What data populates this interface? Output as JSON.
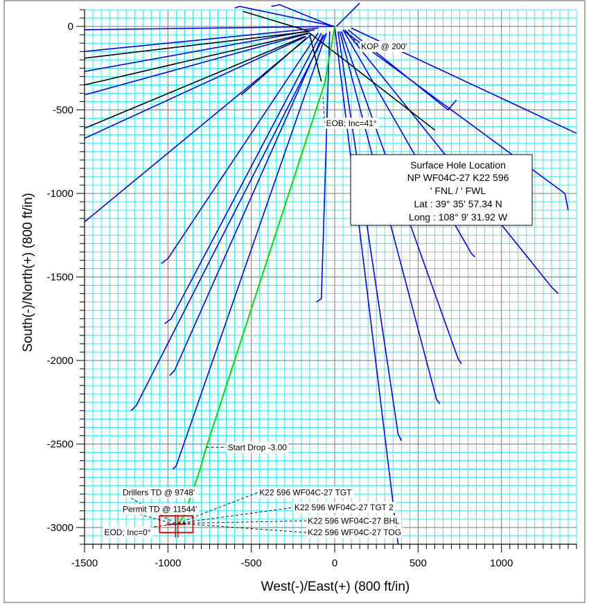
{
  "chart_data": {
    "type": "line",
    "title": "",
    "xlabel": "West(-)/East(+) (800 ft/in)",
    "ylabel": "South(-)/North(+) (800 ft/in)",
    "xlim": [
      -1500,
      1450
    ],
    "ylim": [
      -3100,
      100
    ],
    "x_ticks": [
      -1500,
      -1000,
      -500,
      0,
      500,
      1000
    ],
    "y_ticks": [
      0,
      -500,
      -1000,
      -1500,
      -2000,
      -2500,
      -3000
    ],
    "x_tick_labels": [
      "-1500",
      "-1000",
      "-500",
      "0",
      "500",
      "1000"
    ],
    "y_tick_labels": [
      "0",
      "-500",
      "-1000",
      "-1500",
      "-2000",
      "-2500",
      "-3000"
    ],
    "grid": true,
    "colors": {
      "grid_minor": "#00e5ee",
      "grid_major": "#777777",
      "offset_wells": "#0000ee",
      "offset_wells_black": "#000000",
      "plan": "#00dd00",
      "target": "#ee0000"
    },
    "plan_series": {
      "name": "",
      "x": [
        0,
        0,
        -60,
        -770,
        -810,
        -900,
        -935,
        -950
      ],
      "y": [
        0,
        0,
        -340,
        -2520,
        -2660,
        -2920,
        -2975,
        -2980
      ]
    },
    "offset_wells_blue": [
      {
        "x": [
          0,
          -1500
        ],
        "y": [
          0,
          -20
        ]
      },
      {
        "x": [
          -100,
          -1500
        ],
        "y": [
          -10,
          -150
        ]
      },
      {
        "x": [
          -120,
          -1500
        ],
        "y": [
          -20,
          -270
        ]
      },
      {
        "x": [
          -150,
          -1500
        ],
        "y": [
          -40,
          -410
        ]
      },
      {
        "x": [
          -170,
          -1500
        ],
        "y": [
          -60,
          -670
        ]
      },
      {
        "x": [
          -140,
          -1500
        ],
        "y": [
          -50,
          -1170
        ]
      },
      {
        "x": [
          -100,
          -1000,
          -1040
        ],
        "y": [
          -40,
          -1390,
          -1420
        ]
      },
      {
        "x": [
          -80,
          -980,
          -1020
        ],
        "y": [
          -40,
          -1750,
          -1780
        ]
      },
      {
        "x": [
          -70,
          -960,
          -990
        ],
        "y": [
          -50,
          -2060,
          -2090
        ]
      },
      {
        "x": [
          -60,
          -1190,
          -1220
        ],
        "y": [
          -50,
          -2270,
          -2300
        ]
      },
      {
        "x": [
          -50,
          -950,
          -970
        ],
        "y": [
          -40,
          -2630,
          -2650
        ]
      },
      {
        "x": [
          -30,
          -80,
          -110
        ],
        "y": [
          -30,
          -1630,
          -1650
        ]
      },
      {
        "x": [
          0,
          380
        ],
        "y": [
          0,
          -3100
        ]
      },
      {
        "x": [
          20,
          380,
          400
        ],
        "y": [
          -30,
          -2440,
          -2480
        ]
      },
      {
        "x": [
          30,
          610,
          630
        ],
        "y": [
          -30,
          -2230,
          -2260
        ]
      },
      {
        "x": [
          40,
          740,
          760
        ],
        "y": [
          -30,
          -1990,
          -2020
        ]
      },
      {
        "x": [
          50,
          820,
          840
        ],
        "y": [
          -20,
          -1360,
          -1380
        ]
      },
      {
        "x": [
          60,
          1300,
          1340
        ],
        "y": [
          -20,
          -1560,
          -1600
        ]
      },
      {
        "x": [
          80,
          680,
          730
        ],
        "y": [
          -20,
          -500,
          -440
        ]
      },
      {
        "x": [
          100,
          1450
        ],
        "y": [
          -10,
          -640
        ]
      },
      {
        "x": [
          60,
          1380,
          1400
        ],
        "y": [
          -30,
          -1000,
          -1100
        ]
      },
      {
        "x": [
          0,
          -570,
          -600
        ],
        "y": [
          0,
          120,
          110
        ]
      },
      {
        "x": [
          -10,
          -330,
          -380
        ],
        "y": [
          0,
          130,
          120
        ]
      },
      {
        "x": [
          10,
          130,
          150
        ],
        "y": [
          0,
          120,
          140
        ]
      }
    ],
    "offset_wells_black": [
      {
        "x": [
          -150,
          -1500
        ],
        "y": [
          -30,
          -190
        ]
      },
      {
        "x": [
          -160,
          -1500
        ],
        "y": [
          -40,
          -350
        ]
      },
      {
        "x": [
          -180,
          -1500
        ],
        "y": [
          -60,
          -610
        ]
      },
      {
        "x": [
          -170,
          -560
        ],
        "y": [
          -70,
          -410
        ]
      },
      {
        "x": [
          -150,
          -80
        ],
        "y": [
          -50,
          -330
        ]
      },
      {
        "x": [
          -150,
          600
        ],
        "y": [
          -40,
          -620
        ]
      },
      {
        "x": [
          -150,
          -550
        ],
        "y": [
          -30,
          90
        ]
      }
    ],
    "target_box": {
      "x": [
        -1050,
        -850
      ],
      "y": [
        -2930,
        -3030
      ]
    },
    "annotations": [
      {
        "text": "KOP @ 200'",
        "x": 75,
        "y": -30,
        "label_x": 150,
        "label_y": -120
      },
      {
        "text": "EOB; Inc=41°",
        "x": -70,
        "y": -420,
        "label_x": -60,
        "label_y": -580
      },
      {
        "text": "Start Drop -3.00",
        "x": -770,
        "y": -2520,
        "label_x": -650,
        "label_y": -2520
      },
      {
        "text": "K22 596 WF04C-27 TGT",
        "x": -940,
        "y": -2975,
        "label_x": -460,
        "label_y": -2790
      },
      {
        "text": "K22 596 WF04C-27 TGT 2",
        "x": -940,
        "y": -2975,
        "label_x": -250,
        "label_y": -2880
      },
      {
        "text": "K22 596 WF04C-27 BHL",
        "x": -940,
        "y": -2975,
        "label_x": -170,
        "label_y": -2960
      },
      {
        "text": "K22 596 WF04C-27 TOG",
        "x": -940,
        "y": -2975,
        "label_x": -170,
        "label_y": -3030
      },
      {
        "text": "Drillers TD @ 9748'",
        "x": -955,
        "y": -2975,
        "label_x": -1280,
        "label_y": -2790
      },
      {
        "text": "Permit TD @ 11544'",
        "x": -960,
        "y": -2980,
        "label_x": -1280,
        "label_y": -2890
      },
      {
        "text": "EOD; Inc=0°",
        "x": -950,
        "y": -2980,
        "label_x": -1390,
        "label_y": -3030
      }
    ],
    "legend_box": {
      "title": "Surface Hole Location",
      "lines": [
        "NP WF04C-27 K22 596",
        "' FNL / ' FWL",
        "Lat :  39° 35' 57.34 N",
        "Long :  108° 9' 31.92 W"
      ]
    }
  }
}
